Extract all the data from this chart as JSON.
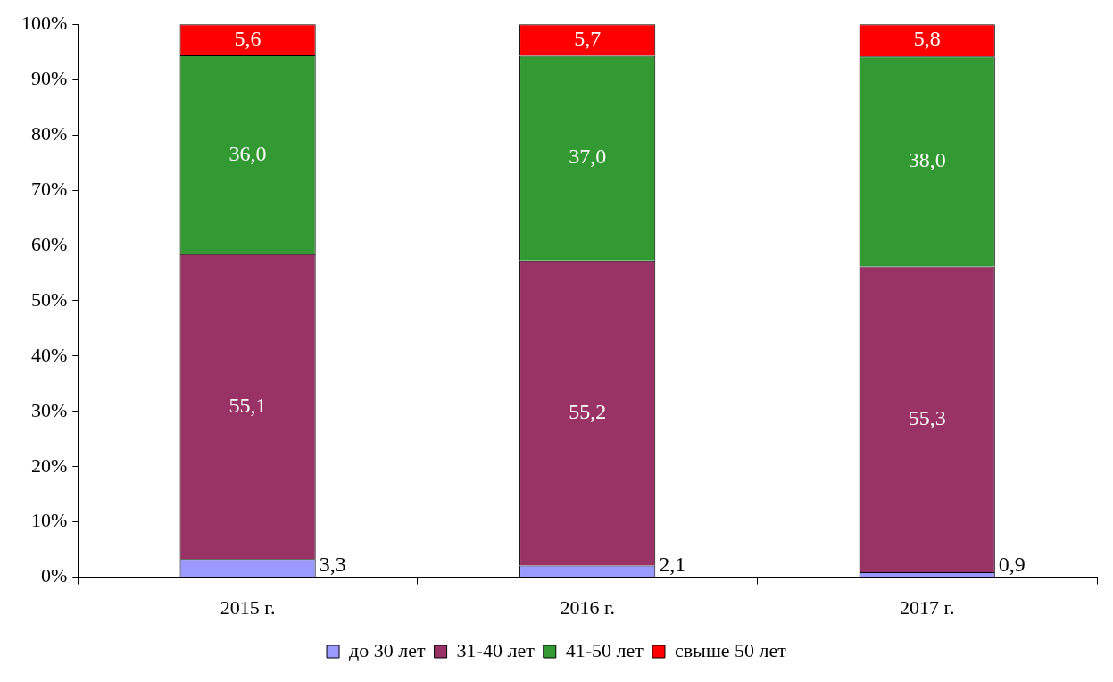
{
  "chart_data": {
    "type": "bar",
    "stacked": true,
    "categories": [
      "2015 г.",
      "2016 г.",
      "2017 г."
    ],
    "series": [
      {
        "name": "до 30 лет",
        "color": "#9999ff",
        "values": [
          3.3,
          2.1,
          0.9
        ],
        "value_labels": [
          "3,3",
          "2,1",
          "0,9"
        ]
      },
      {
        "name": "31-40 лет",
        "color": "#993366",
        "values": [
          55.1,
          55.2,
          55.3
        ],
        "value_labels": [
          "55,1",
          "55,2",
          "55,3"
        ]
      },
      {
        "name": "41-50 лет",
        "color": "#339933",
        "values": [
          36.0,
          37.0,
          38.0
        ],
        "value_labels": [
          "36,0",
          "37,0",
          "38,0"
        ]
      },
      {
        "name": "свыше 50 лет",
        "color": "#ff0000",
        "values": [
          5.6,
          5.7,
          5.8
        ],
        "value_labels": [
          "5,6",
          "5,7",
          "5,8"
        ]
      }
    ],
    "ylim": [
      0,
      100
    ],
    "yticks": [
      {
        "value": 0,
        "label": "0%"
      },
      {
        "value": 10,
        "label": "10%"
      },
      {
        "value": 20,
        "label": "20%"
      },
      {
        "value": 30,
        "label": "30%"
      },
      {
        "value": 40,
        "label": "40%"
      },
      {
        "value": 50,
        "label": "50%"
      },
      {
        "value": 60,
        "label": "60%"
      },
      {
        "value": 70,
        "label": "70%"
      },
      {
        "value": 80,
        "label": "80%"
      },
      {
        "value": 90,
        "label": "90%"
      },
      {
        "value": 100,
        "label": "100%"
      }
    ],
    "grid": false,
    "legend": "bottom"
  }
}
